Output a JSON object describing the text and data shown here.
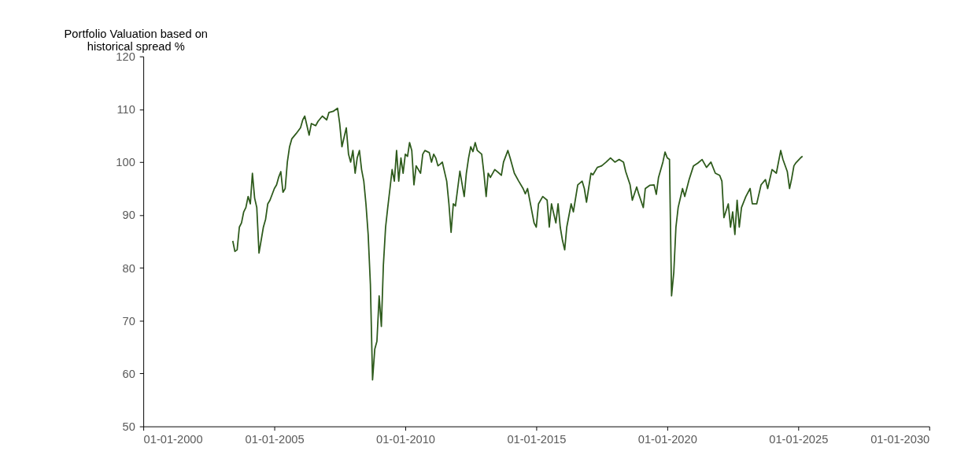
{
  "chart_data": {
    "type": "line",
    "ylabel": "Portfolio Valuation based on historical spread %",
    "x": [
      "2003-06",
      "2003-07",
      "2003-08",
      "2003-09",
      "2003-10",
      "2003-11",
      "2003-12",
      "2004-01",
      "2004-02",
      "2004-03",
      "2004-04",
      "2004-05",
      "2004-06",
      "2004-08",
      "2004-09",
      "2004-10",
      "2004-11",
      "2005-01",
      "2005-02",
      "2005-03",
      "2005-04",
      "2005-05",
      "2005-06",
      "2005-07",
      "2005-08",
      "2005-09",
      "2005-11",
      "2006-01",
      "2006-02",
      "2006-03",
      "2006-05",
      "2006-06",
      "2006-08",
      "2006-09",
      "2006-11",
      "2007-01",
      "2007-02",
      "2007-04",
      "2007-06",
      "2007-07",
      "2007-08",
      "2007-10",
      "2007-11",
      "2007-12",
      "2008-01",
      "2008-02",
      "2008-03",
      "2008-04",
      "2008-05",
      "2008-06",
      "2008-07",
      "2008-08",
      "2008-09",
      "2008-10",
      "2008-11",
      "2008-12",
      "2009-01",
      "2009-02",
      "2009-03",
      "2009-04",
      "2009-05",
      "2009-06",
      "2009-07",
      "2009-08",
      "2009-09",
      "2009-10",
      "2009-11",
      "2009-12",
      "2010-01",
      "2010-02",
      "2010-03",
      "2010-04",
      "2010-05",
      "2010-06",
      "2010-08",
      "2010-09",
      "2010-10",
      "2010-12",
      "2011-01",
      "2011-02",
      "2011-03",
      "2011-04",
      "2011-05",
      "2011-06",
      "2011-08",
      "2011-09",
      "2011-10",
      "2011-11",
      "2011-12",
      "2012-01",
      "2012-02",
      "2012-04",
      "2012-05",
      "2012-06",
      "2012-07",
      "2012-08",
      "2012-09",
      "2012-10",
      "2012-12",
      "2013-01",
      "2013-02",
      "2013-03",
      "2013-04",
      "2013-06",
      "2013-08",
      "2013-09",
      "2013-10",
      "2013-12",
      "2014-01",
      "2014-03",
      "2014-05",
      "2014-07",
      "2014-08",
      "2014-09",
      "2014-12",
      "2015-01",
      "2015-02",
      "2015-04",
      "2015-06",
      "2015-07",
      "2015-08",
      "2015-10",
      "2015-11",
      "2015-12",
      "2016-01",
      "2016-02",
      "2016-03",
      "2016-05",
      "2016-06",
      "2016-08",
      "2016-10",
      "2016-11",
      "2016-12",
      "2017-02",
      "2017-03",
      "2017-05",
      "2017-07",
      "2017-09",
      "2017-11",
      "2018-01",
      "2018-03",
      "2018-05",
      "2018-06",
      "2018-08",
      "2018-09",
      "2018-11",
      "2018-12",
      "2019-02",
      "2019-03",
      "2019-05",
      "2019-07",
      "2019-08",
      "2019-09",
      "2019-11",
      "2019-12",
      "2020-01",
      "2020-02",
      "2020-03",
      "2020-04",
      "2020-05",
      "2020-06",
      "2020-08",
      "2020-09",
      "2020-11",
      "2021-01",
      "2021-03",
      "2021-05",
      "2021-07",
      "2021-09",
      "2021-11",
      "2022-01",
      "2022-02",
      "2022-03",
      "2022-05",
      "2022-06",
      "2022-07",
      "2022-08",
      "2022-09",
      "2022-10",
      "2022-11",
      "2023-01",
      "2023-03",
      "2023-04",
      "2023-06",
      "2023-08",
      "2023-10",
      "2023-11",
      "2024-01",
      "2024-03",
      "2024-05",
      "2024-06",
      "2024-08",
      "2024-09",
      "2024-10",
      "2024-11",
      "2024-12",
      "2025-02",
      "2025-03"
    ],
    "series": [
      {
        "color": "#2d5a1b",
        "values": [
          85.1,
          83.1,
          83.4,
          87.7,
          88.5,
          90.6,
          91.4,
          93.5,
          92.1,
          97.9,
          93.2,
          91.4,
          82.8,
          87.7,
          89.2,
          92.1,
          92.8,
          95.0,
          95.7,
          97.1,
          98.2,
          94.3,
          95.0,
          100.0,
          102.9,
          104.4,
          105.4,
          106.5,
          108.0,
          108.7,
          105.1,
          107.3,
          106.9,
          107.7,
          108.7,
          108.0,
          109.4,
          109.6,
          110.2,
          107.3,
          102.9,
          106.5,
          101.5,
          100.0,
          102.2,
          97.9,
          100.8,
          102.2,
          98.6,
          96.4,
          92.1,
          86.3,
          76.9,
          58.8,
          64.6,
          66.1,
          74.7,
          68.9,
          80.5,
          87.7,
          91.4,
          95.0,
          98.6,
          96.4,
          102.2,
          96.4,
          100.8,
          97.9,
          101.5,
          101.1,
          103.7,
          102.2,
          95.7,
          99.3,
          97.9,
          101.5,
          102.2,
          101.8,
          100.0,
          101.5,
          100.8,
          99.3,
          99.6,
          100.0,
          96.4,
          92.1,
          86.7,
          92.1,
          91.7,
          95.0,
          98.3,
          93.5,
          97.9,
          100.8,
          102.9,
          102.0,
          103.7,
          102.2,
          101.5,
          97.9,
          93.5,
          97.9,
          97.1,
          98.6,
          97.9,
          97.5,
          100.0,
          102.2,
          100.8,
          97.9,
          96.4,
          95.0,
          94.0,
          95.0,
          88.5,
          87.7,
          92.1,
          93.5,
          92.8,
          87.7,
          92.1,
          88.5,
          92.1,
          87.7,
          85.2,
          83.4,
          87.7,
          92.1,
          90.6,
          95.7,
          96.4,
          95.0,
          92.4,
          97.9,
          97.6,
          99.0,
          99.3,
          100.0,
          100.8,
          100.0,
          100.5,
          100.0,
          98.2,
          95.7,
          92.8,
          95.3,
          93.9,
          91.4,
          95.0,
          95.6,
          95.7,
          93.9,
          97.1,
          100.0,
          101.9,
          100.8,
          100.5,
          74.7,
          79.1,
          87.7,
          91.4,
          95.0,
          93.5,
          96.7,
          99.3,
          99.8,
          100.5,
          99.0,
          100.0,
          97.9,
          97.5,
          96.4,
          89.5,
          92.1,
          87.7,
          90.6,
          86.3,
          92.8,
          87.7,
          91.4,
          93.5,
          95.0,
          92.1,
          92.1,
          95.7,
          96.7,
          95.0,
          98.6,
          97.9,
          102.2,
          100.5,
          98.2,
          95.0,
          96.9,
          99.3,
          99.9,
          100.8,
          101.1
        ]
      }
    ],
    "xlim": [
      "2000-01-01",
      "2030-01-01"
    ],
    "xticks": [
      {
        "value": "2000-01-01",
        "label": "01-01-2000"
      },
      {
        "value": "2005-01-01",
        "label": "01-01-2005"
      },
      {
        "value": "2010-01-01",
        "label": "01-01-2010"
      },
      {
        "value": "2015-01-01",
        "label": "01-01-2015"
      },
      {
        "value": "2020-01-01",
        "label": "01-01-2020"
      },
      {
        "value": "2025-01-01",
        "label": "01-01-2025"
      },
      {
        "value": "2030-01-01",
        "label": "01-01-2030"
      }
    ],
    "ylim": [
      50,
      120
    ],
    "yticks": [
      50,
      60,
      70,
      80,
      90,
      100,
      110,
      120
    ],
    "grid": false,
    "marker": "none",
    "line_style": "solid"
  }
}
